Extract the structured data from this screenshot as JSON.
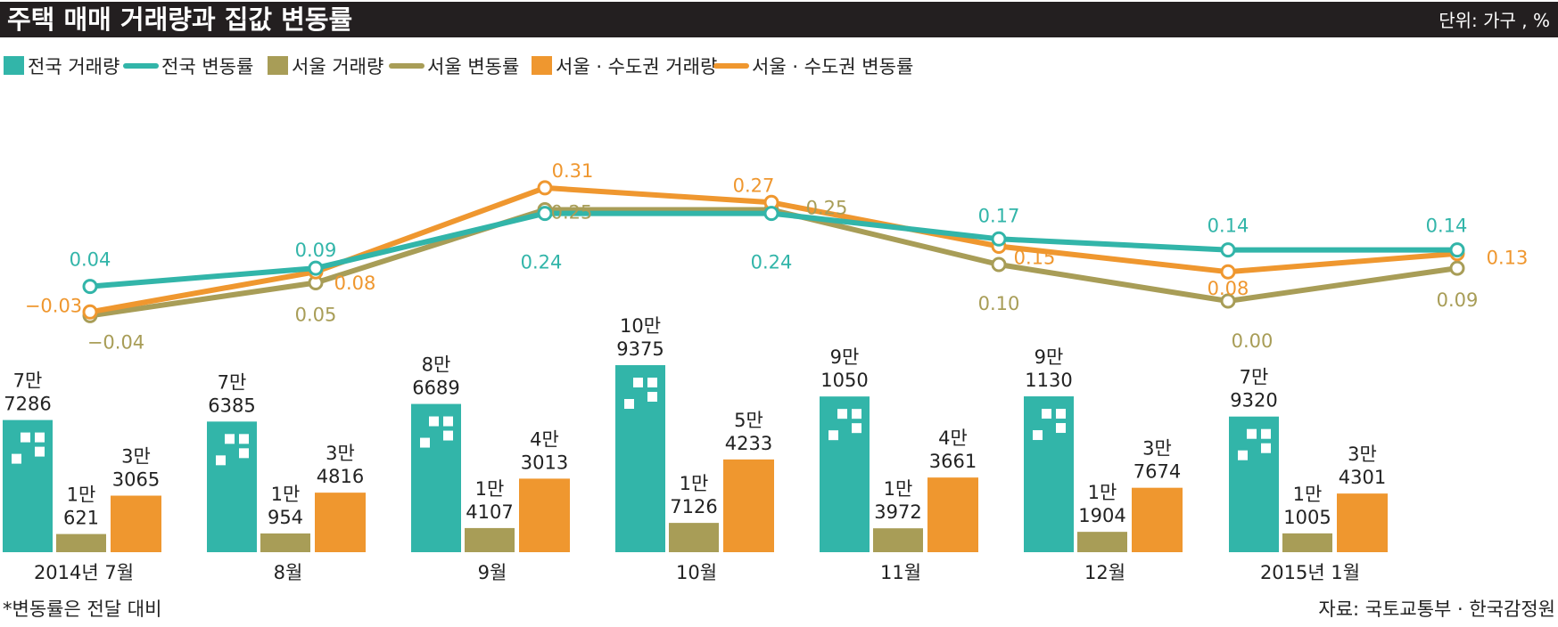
{
  "header": {
    "title": "주택 매매 거래량과 집값 변동률",
    "unit": "단위: 가구 , %"
  },
  "colors": {
    "teal": "#32b5a9",
    "olive": "#a89d57",
    "orange": "#ef972f",
    "header_bg": "#231f20"
  },
  "legend": [
    {
      "label": "전국 거래량",
      "kind": "bar",
      "series": "national_volume"
    },
    {
      "label": "전국 변동률",
      "kind": "line",
      "series": "national_change"
    },
    {
      "label": "서울 거래량",
      "kind": "bar",
      "series": "seoul_volume"
    },
    {
      "label": "서울 변동률",
      "kind": "line",
      "series": "seoul_change"
    },
    {
      "label": "서울 · 수도권 거래량",
      "kind": "bar",
      "series": "metro_volume"
    },
    {
      "label": "서울 · 수도권 변동률",
      "kind": "line",
      "series": "metro_change"
    }
  ],
  "chart_data": {
    "type": "bar",
    "categories": [
      "2014년 7월",
      "8월",
      "9월",
      "10월",
      "11월",
      "12월",
      "2015년 1월"
    ],
    "bar_series": [
      {
        "name": "전국 거래량",
        "key": "national_volume",
        "color": "#32b5a9",
        "values": [
          77286,
          76385,
          86689,
          109375,
          91050,
          91130,
          79320
        ],
        "labels": [
          [
            "7만",
            "7286"
          ],
          [
            "7만",
            "6385"
          ],
          [
            "8만",
            "6689"
          ],
          [
            "10만",
            "9375"
          ],
          [
            "9만",
            "1050"
          ],
          [
            "9만",
            "1130"
          ],
          [
            "7만",
            "9320"
          ]
        ]
      },
      {
        "name": "서울 거래량",
        "key": "seoul_volume",
        "color": "#a89d57",
        "values": [
          10621,
          10954,
          14107,
          17126,
          13972,
          11904,
          11005
        ],
        "labels": [
          [
            "1만",
            "621"
          ],
          [
            "1만",
            "954"
          ],
          [
            "1만",
            "4107"
          ],
          [
            "1만",
            "7126"
          ],
          [
            "1만",
            "3972"
          ],
          [
            "1만",
            "1904"
          ],
          [
            "1만",
            "1005"
          ]
        ]
      },
      {
        "name": "서울 · 수도권 거래량",
        "key": "metro_volume",
        "color": "#ef972f",
        "values": [
          33065,
          34816,
          43013,
          54233,
          43661,
          37674,
          34301
        ],
        "labels": [
          [
            "3만",
            "3065"
          ],
          [
            "3만",
            "4816"
          ],
          [
            "4만",
            "3013"
          ],
          [
            "5만",
            "4233"
          ],
          [
            "4만",
            "3661"
          ],
          [
            "3만",
            "7674"
          ],
          [
            "3만",
            "4301"
          ]
        ]
      }
    ],
    "line_series": [
      {
        "name": "전국 변동률",
        "key": "national_change",
        "color": "#32b5a9",
        "values": [
          0.04,
          0.09,
          0.24,
          0.24,
          0.17,
          0.14,
          0.14
        ],
        "labels": [
          "0.04",
          "0.09",
          "0.24",
          "0.24",
          "0.17",
          "0.14",
          "0.14"
        ]
      },
      {
        "name": "서울 변동률",
        "key": "seoul_change",
        "color": "#a89d57",
        "values": [
          -0.04,
          0.05,
          0.25,
          0.25,
          0.1,
          0.0,
          0.09
        ],
        "labels": [
          "−0.04",
          "0.05",
          "0.25",
          "0.25",
          "0.10",
          "0.00",
          "0.09"
        ]
      },
      {
        "name": "서울 · 수도권 변동률",
        "key": "metro_change",
        "color": "#ef972f",
        "values": [
          -0.03,
          0.08,
          0.31,
          0.27,
          0.15,
          0.08,
          0.13
        ],
        "labels": [
          "−0.03",
          "0.08",
          "0.31",
          "0.27",
          "0.15",
          "0.08",
          "0.13"
        ]
      }
    ]
  },
  "footer": {
    "note": "*변동률은 전달 대비",
    "source": "자료: 국토교통부 · 한국감정원"
  }
}
